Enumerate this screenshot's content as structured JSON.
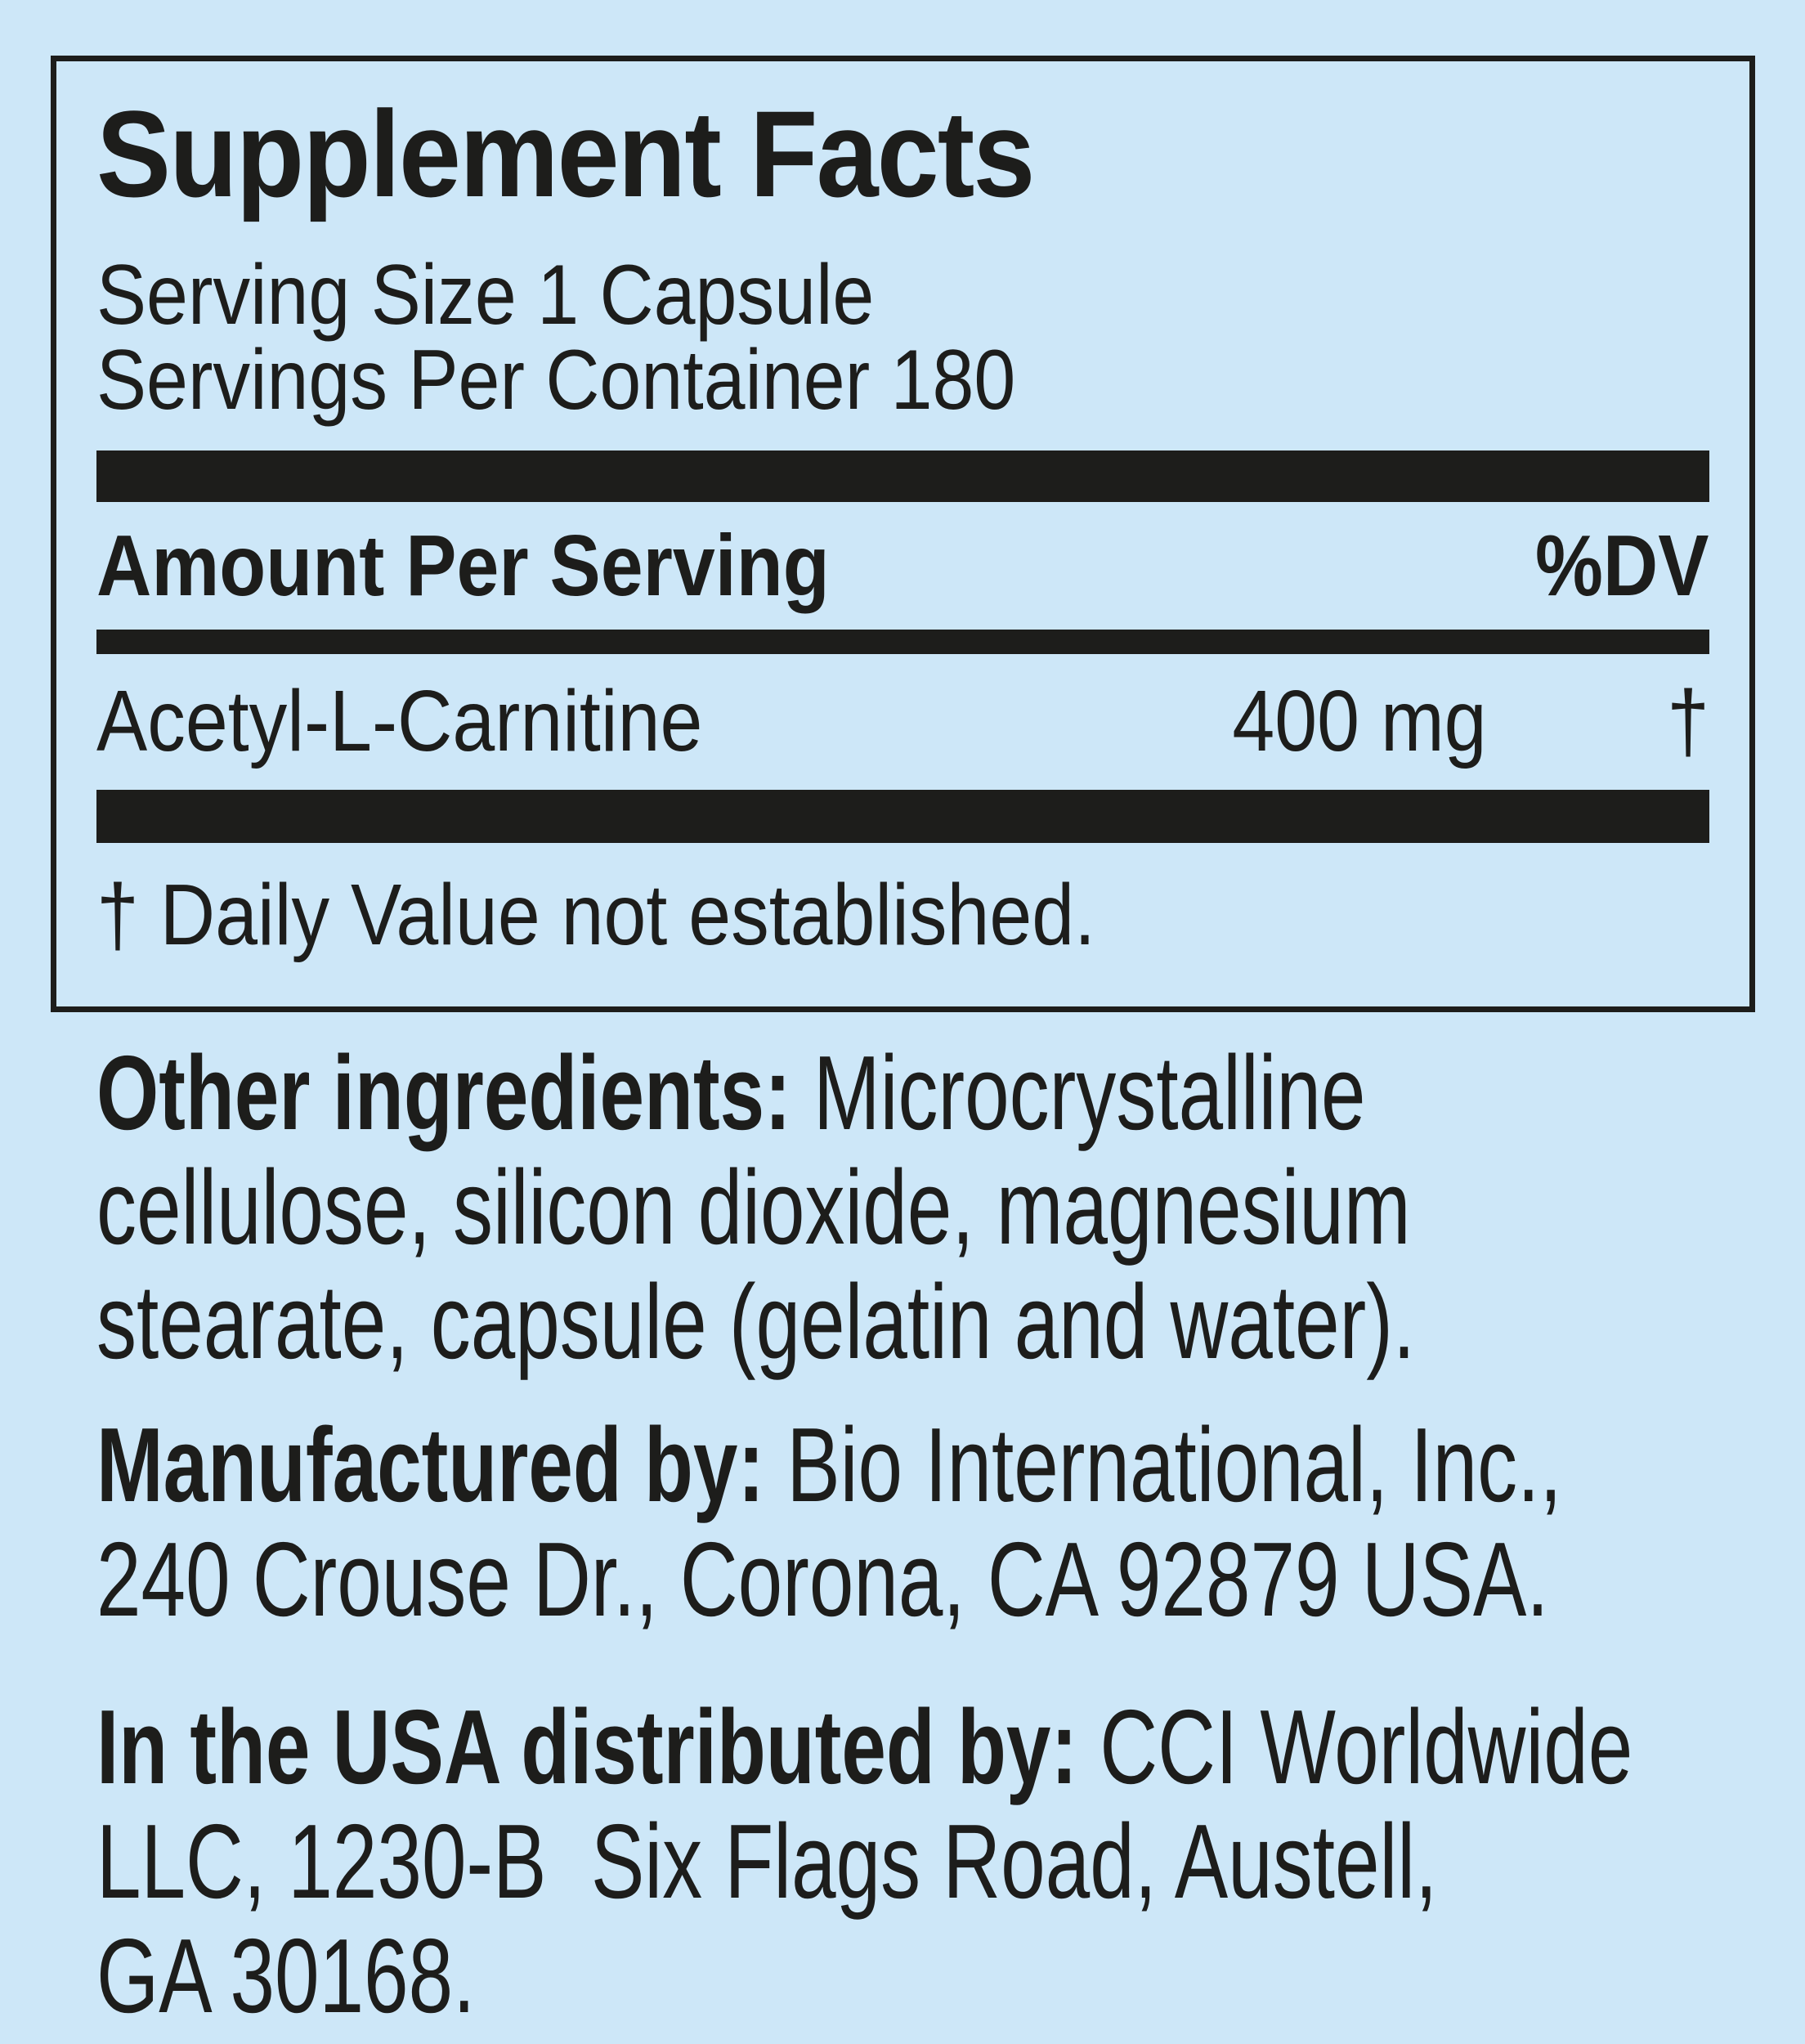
{
  "page": {
    "background_color": "#cde7f8",
    "ink_color": "#1d1d1b"
  },
  "panel": {
    "title": "Supplement Facts",
    "serving_info": "Serving Size 1 Capsule\nServings Per Container 180",
    "header": {
      "amount_label": "Amount Per Serving",
      "dv_label": "%DV"
    },
    "rows": [
      {
        "name": "Acetyl-L-Carnitine",
        "amount": "400 mg",
        "dv": "†"
      }
    ],
    "footnote": "† Daily Value not established."
  },
  "sections": [
    {
      "lead": "Other ingredients:",
      "text": " Microcrystalline\ncellulose, silicon dioxide, magnesium\nstearate, capsule (gelatin and water)."
    },
    {
      "lead": "Manufactured by:",
      "text": " Bio International, Inc.,\n240 Crouse Dr., Corona, CA 92879 USA."
    },
    {
      "lead": "In the USA distributed by:",
      "text": " CCI Worldwide\nLLC, 1230-B  Six Flags Road, Austell,\nGA 30168."
    }
  ]
}
